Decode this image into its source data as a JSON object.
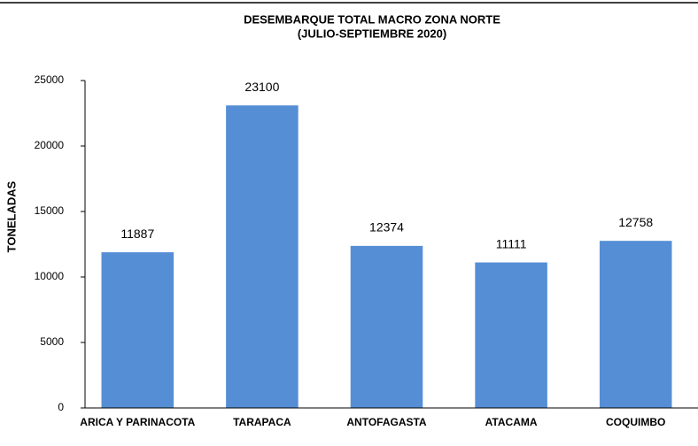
{
  "chart_data": {
    "type": "bar",
    "title": "DESEMBARQUE TOTAL MACRO ZONA NORTE",
    "subtitle": "(JULIO-SEPTIEMBRE 2020)",
    "y_label": "TONELADAS",
    "categories": [
      "ARICA Y PARINACOTA",
      "TARAPACA",
      "ANTOFAGASTA",
      "ATACAMA",
      "COQUIMBO"
    ],
    "values": [
      11887,
      23100,
      12374,
      11111,
      12758
    ],
    "color": "#558ed5",
    "ylim": [
      0,
      25000
    ],
    "yticks": [
      0,
      5000,
      10000,
      15000,
      20000,
      25000
    ],
    "grid": false
  }
}
